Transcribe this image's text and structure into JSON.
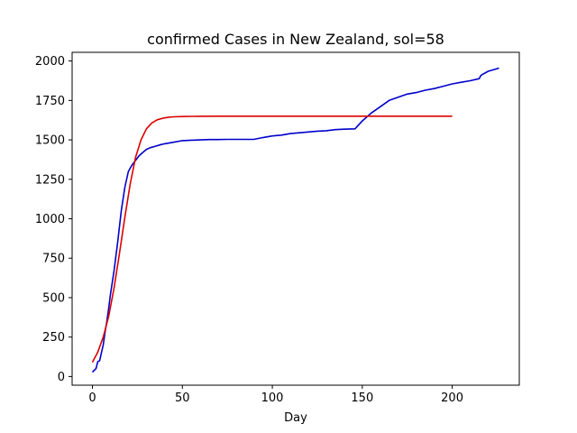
{
  "chart_data": {
    "type": "line",
    "title": "confirmed Cases in New Zealand, sol=58",
    "xlabel": "Day",
    "ylabel": "",
    "xlim": [
      -11.3,
      237.3
    ],
    "ylim": [
      -55,
      2055
    ],
    "xticks": [
      0,
      50,
      100,
      150,
      200
    ],
    "yticks": [
      0,
      250,
      500,
      750,
      1000,
      1250,
      1500,
      1750,
      2000
    ],
    "grid": false,
    "legend": "none",
    "series": [
      {
        "color": "#0000cc",
        "x": [
          0,
          2,
          3,
          4,
          5,
          6,
          7,
          8,
          9,
          10,
          12,
          14,
          16,
          18,
          20,
          22,
          24,
          26,
          28,
          30,
          32,
          35,
          38,
          40,
          45,
          50,
          55,
          60,
          65,
          70,
          75,
          80,
          85,
          90,
          95,
          100,
          105,
          110,
          115,
          120,
          125,
          130,
          135,
          140,
          146,
          150,
          155,
          160,
          165,
          170,
          175,
          180,
          185,
          190,
          195,
          200,
          205,
          210,
          215,
          216,
          220,
          226
        ],
        "y": [
          28,
          50,
          95,
          100,
          150,
          200,
          280,
          350,
          430,
          520,
          670,
          850,
          1050,
          1200,
          1300,
          1340,
          1370,
          1400,
          1420,
          1440,
          1450,
          1460,
          1470,
          1475,
          1485,
          1495,
          1498,
          1500,
          1502,
          1502,
          1503,
          1503,
          1503,
          1504,
          1515,
          1525,
          1530,
          1540,
          1545,
          1550,
          1555,
          1558,
          1565,
          1568,
          1570,
          1620,
          1670,
          1710,
          1750,
          1770,
          1790,
          1800,
          1815,
          1825,
          1840,
          1855,
          1865,
          1875,
          1888,
          1910,
          1935,
          1955
        ]
      },
      {
        "color": "#dd0000",
        "x": [
          0,
          3,
          6,
          9,
          12,
          15,
          18,
          21,
          24,
          27,
          30,
          33,
          36,
          39,
          42,
          45,
          50,
          55,
          60,
          70,
          80,
          100,
          150,
          200
        ],
        "y": [
          90,
          155,
          250,
          380,
          560,
          780,
          1010,
          1220,
          1390,
          1500,
          1570,
          1607,
          1627,
          1637,
          1643,
          1646,
          1648,
          1649,
          1649.5,
          1650,
          1650,
          1650,
          1650,
          1650
        ]
      }
    ]
  }
}
